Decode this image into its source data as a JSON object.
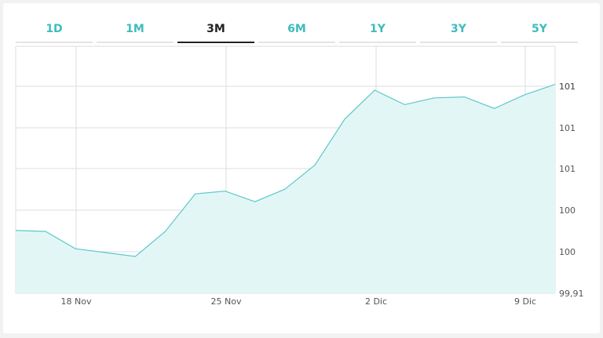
{
  "tabs": [
    {
      "label": "1D",
      "active": false
    },
    {
      "label": "1M",
      "active": false
    },
    {
      "label": "3M",
      "active": true
    },
    {
      "label": "6M",
      "active": false
    },
    {
      "label": "1Y",
      "active": false
    },
    {
      "label": "3Y",
      "active": false
    },
    {
      "label": "5Y",
      "active": false
    }
  ],
  "colors": {
    "accent": "#3fbcbc",
    "line": "#5cc8cc",
    "area": "#e3f6f6",
    "grid": "#dddddd",
    "active_tab": "#222222"
  },
  "chart_data": {
    "type": "area",
    "title": "",
    "xlabel": "",
    "ylabel": "",
    "grid": true,
    "x_ticks": [
      "18 Nov",
      "25 Nov",
      "2 Dic",
      "9 Dic"
    ],
    "y_ticks": [
      "99,91",
      "100",
      "100",
      "101",
      "101",
      "101",
      "101"
    ],
    "y_axis_side": "right",
    "ylim": [
      99.91,
      101.1
    ],
    "x": [
      0,
      1,
      2,
      3,
      4,
      5,
      6,
      7,
      8,
      9,
      10,
      11,
      12,
      13,
      14,
      15,
      16,
      17
    ],
    "x_tick_positions": [
      2,
      7,
      12,
      17
    ],
    "values": [
      100.22,
      100.215,
      100.125,
      100.105,
      100.085,
      100.215,
      100.41,
      100.425,
      100.37,
      100.435,
      100.56,
      100.8,
      100.95,
      100.875,
      100.91,
      100.915,
      100.855,
      100.925
    ],
    "x_last_extra": 0.3,
    "y_last_extra": 100.98
  }
}
